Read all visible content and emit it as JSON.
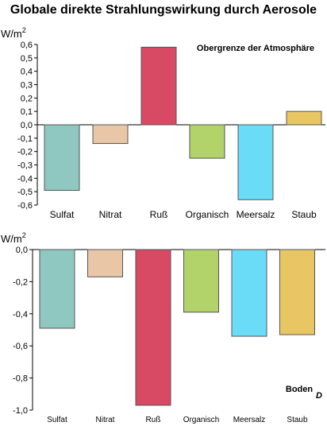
{
  "title": "Globale direkte Strahlungswirkung durch Aerosole",
  "unit": "W/m",
  "unit_superscript": "2",
  "chart_data": [
    {
      "type": "bar",
      "annotation": "Obergrenze der Atmosphäre",
      "ylabel": "W/m2",
      "ylim": [
        -0.6,
        0.6
      ],
      "yticks": [
        0.6,
        0.5,
        0.4,
        0.3,
        0.2,
        0.1,
        0.0,
        -0.1,
        -0.2,
        -0.3,
        -0.4,
        -0.5,
        -0.6
      ],
      "ytick_labels": [
        "0,6",
        "0,5",
        "0,4",
        "0,3",
        "0,2",
        "0,1",
        "0,0",
        "-0,1",
        "-0,2",
        "-0,3",
        "-0,4",
        "-0,5",
        "-0,6"
      ],
      "categories": [
        "Sulfat",
        "Nitrat",
        "Ruß",
        "Organisch",
        "Meersalz",
        "Staub"
      ],
      "values": [
        -0.49,
        -0.14,
        0.58,
        -0.25,
        -0.56,
        0.1
      ],
      "colors": [
        "#8ec8c0",
        "#e8c6a6",
        "#d84a64",
        "#b2d36a",
        "#6adcf8",
        "#e8c664"
      ],
      "grid": false
    },
    {
      "type": "bar",
      "annotation": "Boden",
      "ylabel": "W/m2",
      "ylim": [
        -1.0,
        0.0
      ],
      "yticks": [
        0.0,
        -0.2,
        -0.4,
        -0.6,
        -0.8,
        -1.0
      ],
      "ytick_labels": [
        "0,0",
        "-0,2",
        "-0,4",
        "-0,6",
        "-0,8",
        "-1,0"
      ],
      "categories": [
        "Sulfat",
        "Nitrat",
        "Ruß",
        "Organisch",
        "Meersalz",
        "Staub"
      ],
      "values": [
        -0.49,
        -0.17,
        -0.97,
        -0.39,
        -0.54,
        -0.53
      ],
      "colors": [
        "#8ec8c0",
        "#e8c6a6",
        "#d84a64",
        "#b2d36a",
        "#6adcf8",
        "#e8c664"
      ],
      "grid": false
    }
  ],
  "footer_logo_text": "D"
}
